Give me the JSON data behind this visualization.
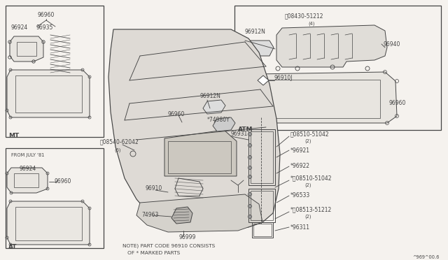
{
  "bg_color": "#f5f2ee",
  "line_color": "#444444",
  "text_color": "#111111",
  "diagram_id": "^969^00.6",
  "note_line1": "NOTE) PART CODE 96910 CONSISTS",
  "note_line2": "   OF * MARKED PARTS",
  "font_size": 5.5,
  "small_font": 4.8,
  "label_font": 6.0
}
